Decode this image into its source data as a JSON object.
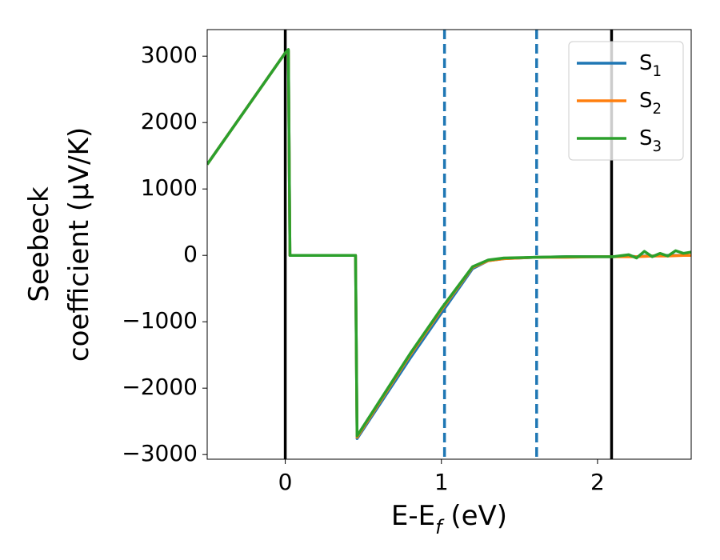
{
  "chart_data": {
    "type": "line",
    "xlabel": "E-E_f (eV)",
    "ylabel": [
      "Seebeck",
      "coefficient  (μV/K)"
    ],
    "xlim": [
      -0.5,
      2.6
    ],
    "ylim": [
      -3070,
      3400
    ],
    "xticks": [
      0,
      1,
      2
    ],
    "yticks": [
      {
        "value": -3000,
        "label": "−3000"
      },
      {
        "value": -2000,
        "label": "−2000"
      },
      {
        "value": -1000,
        "label": "−1000"
      },
      0,
      1000,
      2000,
      3000
    ],
    "legend": "upper right",
    "vlines": [
      {
        "x": 0,
        "color": "#000000",
        "style": "solid"
      },
      {
        "x": 2.09,
        "color": "#000000",
        "style": "solid"
      },
      {
        "x": 1.02,
        "color": "#1f77b4",
        "style": "dashed"
      },
      {
        "x": 1.61,
        "color": "#1f77b4",
        "style": "dashed"
      }
    ],
    "x": [
      -0.5,
      0,
      0.02,
      0.03,
      0.45,
      0.46,
      0.8,
      1.0,
      1.2,
      1.3,
      1.4,
      1.6,
      1.8,
      2.0,
      2.1,
      2.2,
      2.25,
      2.3,
      2.35,
      2.4,
      2.45,
      2.5,
      2.55,
      2.6
    ],
    "series": [
      {
        "name": "S_1",
        "color": "#1f77b4",
        "values": [
          1370,
          3050,
          3080,
          0,
          0,
          -2760,
          -1550,
          -870,
          -200,
          -80,
          -50,
          -30,
          -20,
          -20,
          -20,
          -10,
          -20,
          -10,
          -10,
          -5,
          0,
          0,
          0,
          0
        ]
      },
      {
        "name": "S_2",
        "color": "#ff7f0e",
        "values": [
          1370,
          3050,
          3080,
          0,
          0,
          -2740,
          -1500,
          -820,
          -180,
          -80,
          -50,
          -30,
          -30,
          -20,
          -20,
          -20,
          -20,
          -15,
          -10,
          -10,
          -10,
          -5,
          0,
          0
        ]
      },
      {
        "name": "S_3",
        "color": "#2ca02c",
        "values": [
          1370,
          3050,
          3100,
          0,
          0,
          -2720,
          -1480,
          -800,
          -170,
          -70,
          -40,
          -30,
          -20,
          -20,
          -20,
          10,
          -40,
          60,
          -20,
          30,
          -10,
          70,
          30,
          50
        ]
      }
    ]
  }
}
